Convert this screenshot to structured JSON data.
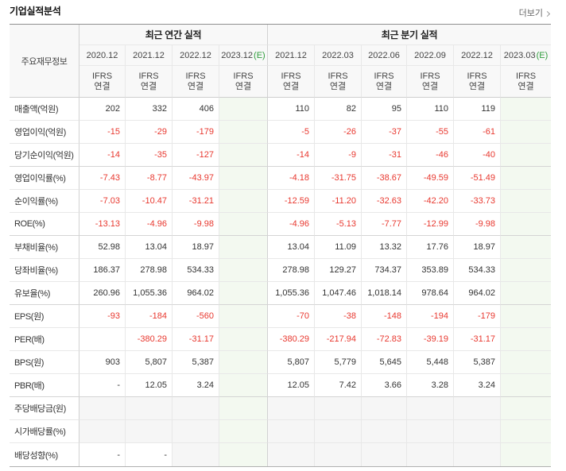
{
  "header": {
    "title": "기업실적분석",
    "more_label": "더보기",
    "more_icon": "chevron-right-icon"
  },
  "table": {
    "row_header_label": "주요재무정보",
    "groups": [
      {
        "label": "최근 연간 실적",
        "columns": [
          {
            "period": "2020.12",
            "estimate_mark": "",
            "basis": "IFRS",
            "scope": "연결"
          },
          {
            "period": "2021.12",
            "estimate_mark": "",
            "basis": "IFRS",
            "scope": "연결"
          },
          {
            "period": "2022.12",
            "estimate_mark": "",
            "basis": "IFRS",
            "scope": "연결"
          },
          {
            "period": "2023.12",
            "estimate_mark": "(E)",
            "basis": "IFRS",
            "scope": "연결"
          }
        ]
      },
      {
        "label": "최근 분기 실적",
        "columns": [
          {
            "period": "2021.12",
            "estimate_mark": "",
            "basis": "IFRS",
            "scope": "연결"
          },
          {
            "period": "2022.03",
            "estimate_mark": "",
            "basis": "IFRS",
            "scope": "연결"
          },
          {
            "period": "2022.06",
            "estimate_mark": "",
            "basis": "IFRS",
            "scope": "연결"
          },
          {
            "period": "2022.09",
            "estimate_mark": "",
            "basis": "IFRS",
            "scope": "연결"
          },
          {
            "period": "2022.12",
            "estimate_mark": "",
            "basis": "IFRS",
            "scope": "연결"
          },
          {
            "period": "2023.03",
            "estimate_mark": "(E)",
            "basis": "IFRS",
            "scope": "연결"
          }
        ]
      }
    ],
    "rows": [
      {
        "label": "매출액(억원)",
        "values": [
          "202",
          "332",
          "406",
          "",
          "110",
          "82",
          "95",
          "110",
          "119",
          ""
        ]
      },
      {
        "label": "영업이익(억원)",
        "values": [
          "-15",
          "-29",
          "-179",
          "",
          "-5",
          "-26",
          "-37",
          "-55",
          "-61",
          ""
        ]
      },
      {
        "label": "당기순이익(억원)",
        "values": [
          "-14",
          "-35",
          "-127",
          "",
          "-14",
          "-9",
          "-31",
          "-46",
          "-40",
          ""
        ]
      },
      {
        "label": "영업이익률(%)",
        "values": [
          "-7.43",
          "-8.77",
          "-43.97",
          "",
          "-4.18",
          "-31.75",
          "-38.67",
          "-49.59",
          "-51.49",
          ""
        ]
      },
      {
        "label": "순이익률(%)",
        "values": [
          "-7.03",
          "-10.47",
          "-31.21",
          "",
          "-12.59",
          "-11.20",
          "-32.63",
          "-42.20",
          "-33.73",
          ""
        ]
      },
      {
        "label": "ROE(%)",
        "values": [
          "-13.13",
          "-4.96",
          "-9.98",
          "",
          "-4.96",
          "-5.13",
          "-7.77",
          "-12.99",
          "-9.98",
          ""
        ]
      },
      {
        "label": "부채비율(%)",
        "values": [
          "52.98",
          "13.04",
          "18.97",
          "",
          "13.04",
          "11.09",
          "13.32",
          "17.76",
          "18.97",
          ""
        ]
      },
      {
        "label": "당좌비율(%)",
        "values": [
          "186.37",
          "278.98",
          "534.33",
          "",
          "278.98",
          "129.27",
          "734.37",
          "353.89",
          "534.33",
          ""
        ]
      },
      {
        "label": "유보율(%)",
        "values": [
          "260.96",
          "1,055.36",
          "964.02",
          "",
          "1,055.36",
          "1,047.46",
          "1,018.14",
          "978.64",
          "964.02",
          ""
        ]
      },
      {
        "label": "EPS(원)",
        "values": [
          "-93",
          "-184",
          "-560",
          "",
          "-70",
          "-38",
          "-148",
          "-194",
          "-179",
          ""
        ]
      },
      {
        "label": "PER(배)",
        "values": [
          "",
          "-380.29",
          "-31.17",
          "",
          "-380.29",
          "-217.94",
          "-72.83",
          "-39.19",
          "-31.17",
          ""
        ]
      },
      {
        "label": "BPS(원)",
        "values": [
          "903",
          "5,807",
          "5,387",
          "",
          "5,807",
          "5,779",
          "5,645",
          "5,448",
          "5,387",
          ""
        ]
      },
      {
        "label": "PBR(배)",
        "values": [
          "-",
          "12.05",
          "3.24",
          "",
          "12.05",
          "7.42",
          "3.66",
          "3.28",
          "3.24",
          ""
        ]
      },
      {
        "label": "주당배당금(원)",
        "values": [
          "",
          "",
          "",
          "",
          "",
          "",
          "",
          "",
          "",
          ""
        ]
      },
      {
        "label": "시가배당률(%)",
        "values": [
          "",
          "",
          "",
          "",
          "",
          "",
          "",
          "",
          "",
          ""
        ]
      },
      {
        "label": "배당성향(%)",
        "values": [
          "-",
          "-",
          "",
          "",
          "",
          "",
          "",
          "",
          "",
          ""
        ]
      }
    ]
  },
  "colors": {
    "negative": "#e8382f",
    "basis_label": "#ea6b2c",
    "estimate_mark": "#2f9c3c",
    "estimate_column_bg": "#f3f9f0"
  }
}
